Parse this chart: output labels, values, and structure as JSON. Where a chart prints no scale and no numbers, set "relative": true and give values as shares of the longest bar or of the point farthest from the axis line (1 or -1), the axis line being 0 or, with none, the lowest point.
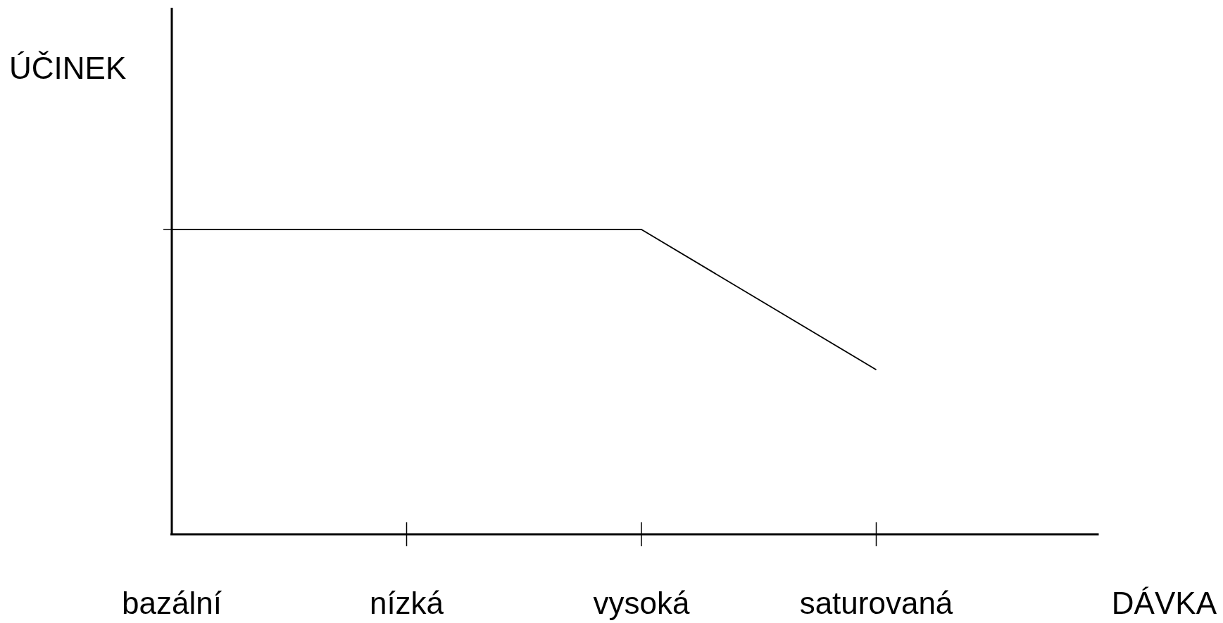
{
  "chart_data": {
    "type": "line",
    "xlabel": "DÁVKA",
    "ylabel": "ÚČINEK",
    "relative": true,
    "categories": [
      "bazální",
      "nízká",
      "vysoká",
      "saturovaná"
    ],
    "series": [
      {
        "color": "#000000",
        "values": [
          1,
          1,
          1,
          0.54
        ]
      }
    ],
    "marker": "none",
    "line_style": "solid",
    "grid": false
  }
}
